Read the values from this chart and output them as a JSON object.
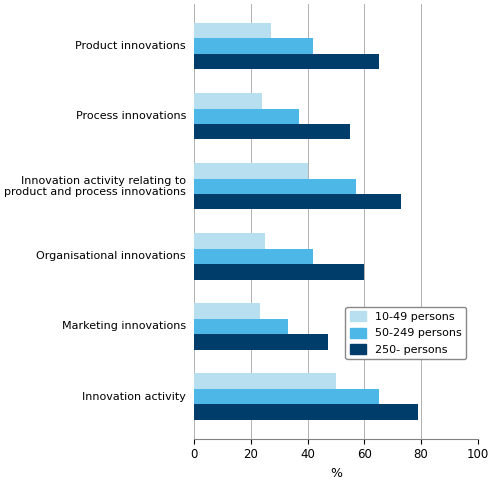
{
  "categories": [
    "Innovation activity",
    "Marketing innovations",
    "Organisational innovations",
    "Innovation activity relating to\nproduct and process innovations",
    "Process innovations",
    "Product innovations"
  ],
  "series": {
    "10-49 persons": [
      50,
      23,
      25,
      40,
      24,
      27
    ],
    "50-249 persons": [
      65,
      33,
      42,
      57,
      37,
      42
    ],
    "250- persons": [
      79,
      47,
      60,
      73,
      55,
      65
    ]
  },
  "colors": {
    "10-49 persons": "#b8dff0",
    "50-249 persons": "#4db8e8",
    "250- persons": "#003d6b"
  },
  "xlim": [
    0,
    100
  ],
  "xticks": [
    0,
    20,
    40,
    60,
    80,
    100
  ],
  "xlabel": "%",
  "bar_height": 0.22,
  "legend_labels": [
    "10-49 persons",
    "50-249 persons",
    "250- persons"
  ],
  "figsize": [
    4.93,
    4.84
  ],
  "dpi": 100
}
